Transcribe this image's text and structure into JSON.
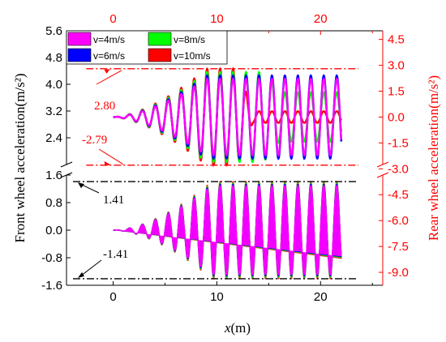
{
  "chart_data": {
    "type": "line",
    "xlabel_italic": "x",
    "xlabel_unit": "(m)",
    "ylabel_left": "Front wheel acceleration(m/s²)",
    "ylabel_right": "Rear wheel acceleration(m/s²)",
    "x_range": [
      -4.5,
      26
    ],
    "bottom_x_ticks": [
      "0",
      "10",
      "20"
    ],
    "top_x_ticks": [
      "0",
      "10",
      "20"
    ],
    "bottom_x_tick_values": [
      0,
      10,
      20
    ],
    "left_y_ticks_upper": [
      "5.6",
      "4.8",
      "4.0",
      "3.2",
      "2.4"
    ],
    "left_y_ticks_upper_values": [
      5.6,
      4.8,
      4.0,
      3.2,
      2.4
    ],
    "left_y_ticks_lower": [
      "1.6",
      "0.8",
      "0.0",
      "-0.8",
      "-1.6"
    ],
    "left_y_ticks_lower_values": [
      1.6,
      0.8,
      0.0,
      -0.8,
      -1.6
    ],
    "right_y_ticks_upper": [
      "4.5",
      "3.0",
      "1.5",
      "0.0",
      "-1.5",
      "-3.0"
    ],
    "right_y_ticks_upper_values": [
      4.5,
      3.0,
      1.5,
      0.0,
      -1.5,
      -3.0
    ],
    "right_y_ticks_lower": [
      "-4.5",
      "-6.0",
      "-7.5",
      "-9.0"
    ],
    "right_y_ticks_lower_values": [
      -4.5,
      -6.0,
      -7.5,
      -9.0
    ],
    "upper_panel_left_range": [
      1.6,
      5.6
    ],
    "lower_panel_left_range": [
      -1.6,
      1.6
    ],
    "right_axis_range": [
      -9.75,
      5.0
    ],
    "upper_annotations": [
      {
        "label": "2.80",
        "value": 2.8
      },
      {
        "label": "-2.79",
        "value": -2.79
      }
    ],
    "lower_annotations": [
      {
        "label": "1.41",
        "value": 1.41
      },
      {
        "label": "-1.41",
        "value": -1.41
      }
    ],
    "series": [
      {
        "name": "v=4m/s",
        "color": "#ff00ff"
      },
      {
        "name": "v=8m/s",
        "color": "#00ff00"
      },
      {
        "name": "v=6m/s",
        "color": "#0000ff"
      },
      {
        "name": "v=10m/s",
        "color": "#ff0000"
      }
    ],
    "legend_position": "top-left",
    "colors": {
      "left_axis": "#000000",
      "right_axis": "#ff0000",
      "ref_line_upper": "#ff0000",
      "ref_line_lower": "#000000"
    }
  }
}
